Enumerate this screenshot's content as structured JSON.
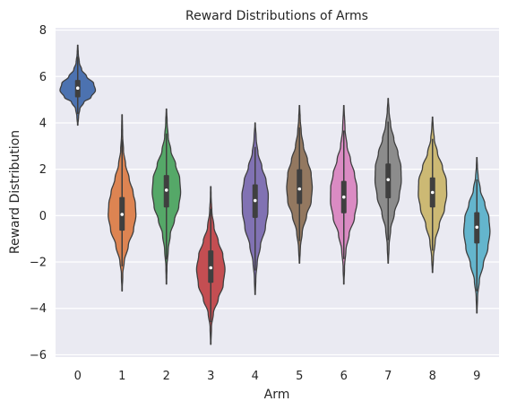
{
  "chart_data": {
    "type": "violin",
    "title": "Reward Distributions of Arms",
    "xlabel": "Arm",
    "ylabel": "Reward Distribution",
    "ylim": [
      -6.1,
      8.1
    ],
    "yticks": [
      -6,
      -4,
      -2,
      0,
      2,
      4,
      6,
      8
    ],
    "categories": [
      "0",
      "1",
      "2",
      "3",
      "4",
      "5",
      "6",
      "7",
      "8",
      "9"
    ],
    "grid": true,
    "background": "#eaeaf2",
    "grid_color": "#ffffff",
    "violins": [
      {
        "category": "0",
        "color": "#4c72b0",
        "min": 3.9,
        "max": 7.35,
        "q1": 5.1,
        "median": 5.5,
        "q3": 5.85,
        "profile": [
          [
            3.9,
            0.01
          ],
          [
            4.3,
            0.05
          ],
          [
            4.6,
            0.12
          ],
          [
            4.9,
            0.35
          ],
          [
            5.1,
            0.75
          ],
          [
            5.4,
            1.0
          ],
          [
            5.7,
            0.9
          ],
          [
            6.0,
            0.5
          ],
          [
            6.3,
            0.22
          ],
          [
            6.6,
            0.09
          ],
          [
            7.0,
            0.03
          ],
          [
            7.35,
            0.01
          ]
        ]
      },
      {
        "category": "1",
        "color": "#dd8452",
        "min": -3.25,
        "max": 4.35,
        "q1": -0.65,
        "median": 0.05,
        "q3": 0.8,
        "profile": [
          [
            -3.25,
            0.01
          ],
          [
            -2.5,
            0.04
          ],
          [
            -2.0,
            0.12
          ],
          [
            -1.3,
            0.35
          ],
          [
            -0.6,
            0.65
          ],
          [
            0.0,
            0.78
          ],
          [
            0.5,
            0.75
          ],
          [
            1.0,
            0.62
          ],
          [
            1.6,
            0.4
          ],
          [
            2.2,
            0.2
          ],
          [
            2.8,
            0.08
          ],
          [
            3.5,
            0.03
          ],
          [
            4.35,
            0.01
          ]
        ]
      },
      {
        "category": "2",
        "color": "#55a868",
        "min": -2.95,
        "max": 4.6,
        "q1": 0.35,
        "median": 1.1,
        "q3": 1.75,
        "profile": [
          [
            -2.95,
            0.01
          ],
          [
            -2.2,
            0.03
          ],
          [
            -1.5,
            0.1
          ],
          [
            -0.8,
            0.22
          ],
          [
            -0.2,
            0.45
          ],
          [
            0.4,
            0.7
          ],
          [
            1.0,
            0.8
          ],
          [
            1.6,
            0.75
          ],
          [
            2.2,
            0.52
          ],
          [
            2.8,
            0.25
          ],
          [
            3.4,
            0.1
          ],
          [
            4.0,
            0.04
          ],
          [
            4.6,
            0.01
          ]
        ]
      },
      {
        "category": "3",
        "color": "#c44e52",
        "min": -5.55,
        "max": 1.25,
        "q1": -2.9,
        "median": -2.25,
        "q3": -1.5,
        "profile": [
          [
            -5.55,
            0.01
          ],
          [
            -4.8,
            0.04
          ],
          [
            -4.2,
            0.15
          ],
          [
            -3.6,
            0.42
          ],
          [
            -3.0,
            0.7
          ],
          [
            -2.3,
            0.8
          ],
          [
            -1.7,
            0.68
          ],
          [
            -1.1,
            0.42
          ],
          [
            -0.5,
            0.18
          ],
          [
            0.2,
            0.06
          ],
          [
            0.8,
            0.02
          ],
          [
            1.25,
            0.01
          ]
        ]
      },
      {
        "category": "4",
        "color": "#8172b3",
        "min": -3.4,
        "max": 4.0,
        "q1": -0.1,
        "median": 0.65,
        "q3": 1.35,
        "profile": [
          [
            -3.4,
            0.01
          ],
          [
            -2.7,
            0.04
          ],
          [
            -2.0,
            0.12
          ],
          [
            -1.3,
            0.3
          ],
          [
            -0.5,
            0.58
          ],
          [
            0.2,
            0.72
          ],
          [
            0.9,
            0.74
          ],
          [
            1.5,
            0.62
          ],
          [
            2.1,
            0.38
          ],
          [
            2.7,
            0.16
          ],
          [
            3.3,
            0.06
          ],
          [
            4.0,
            0.01
          ]
        ]
      },
      {
        "category": "5",
        "color": "#937860",
        "min": -2.05,
        "max": 4.75,
        "q1": 0.5,
        "median": 1.15,
        "q3": 2.0,
        "profile": [
          [
            -2.05,
            0.01
          ],
          [
            -1.4,
            0.05
          ],
          [
            -0.7,
            0.16
          ],
          [
            0.0,
            0.4
          ],
          [
            0.6,
            0.66
          ],
          [
            1.2,
            0.72
          ],
          [
            1.8,
            0.66
          ],
          [
            2.4,
            0.45
          ],
          [
            3.0,
            0.22
          ],
          [
            3.6,
            0.1
          ],
          [
            4.2,
            0.04
          ],
          [
            4.75,
            0.01
          ]
        ]
      },
      {
        "category": "6",
        "color": "#da8bc3",
        "min": -2.95,
        "max": 4.75,
        "q1": 0.1,
        "median": 0.8,
        "q3": 1.5,
        "profile": [
          [
            -2.95,
            0.01
          ],
          [
            -2.2,
            0.04
          ],
          [
            -1.5,
            0.12
          ],
          [
            -0.8,
            0.3
          ],
          [
            -0.1,
            0.6
          ],
          [
            0.6,
            0.75
          ],
          [
            1.2,
            0.74
          ],
          [
            1.8,
            0.6
          ],
          [
            2.4,
            0.38
          ],
          [
            3.0,
            0.18
          ],
          [
            3.7,
            0.07
          ],
          [
            4.75,
            0.01
          ]
        ]
      },
      {
        "category": "7",
        "color": "#8c8c8c",
        "min": -2.05,
        "max": 5.05,
        "q1": 0.75,
        "median": 1.55,
        "q3": 2.25,
        "profile": [
          [
            -2.05,
            0.01
          ],
          [
            -1.3,
            0.05
          ],
          [
            -0.6,
            0.14
          ],
          [
            0.1,
            0.35
          ],
          [
            0.8,
            0.62
          ],
          [
            1.5,
            0.74
          ],
          [
            2.1,
            0.72
          ],
          [
            2.7,
            0.55
          ],
          [
            3.3,
            0.32
          ],
          [
            3.9,
            0.14
          ],
          [
            4.5,
            0.05
          ],
          [
            5.05,
            0.01
          ]
        ]
      },
      {
        "category": "8",
        "color": "#ccb974",
        "min": -2.45,
        "max": 4.25,
        "q1": 0.35,
        "median": 1.0,
        "q3": 1.65,
        "profile": [
          [
            -2.45,
            0.01
          ],
          [
            -1.8,
            0.05
          ],
          [
            -1.1,
            0.15
          ],
          [
            -0.4,
            0.38
          ],
          [
            0.3,
            0.68
          ],
          [
            0.9,
            0.8
          ],
          [
            1.5,
            0.78
          ],
          [
            2.1,
            0.56
          ],
          [
            2.7,
            0.28
          ],
          [
            3.3,
            0.1
          ],
          [
            3.8,
            0.04
          ],
          [
            4.25,
            0.01
          ]
        ]
      },
      {
        "category": "9",
        "color": "#64b5cd",
        "min": -4.2,
        "max": 2.5,
        "q1": -1.2,
        "median": -0.5,
        "q3": 0.15,
        "profile": [
          [
            -4.2,
            0.01
          ],
          [
            -3.5,
            0.04
          ],
          [
            -2.8,
            0.14
          ],
          [
            -2.1,
            0.36
          ],
          [
            -1.4,
            0.62
          ],
          [
            -0.7,
            0.74
          ],
          [
            -0.1,
            0.68
          ],
          [
            0.5,
            0.45
          ],
          [
            1.1,
            0.2
          ],
          [
            1.7,
            0.07
          ],
          [
            2.1,
            0.03
          ],
          [
            2.5,
            0.01
          ]
        ]
      }
    ]
  }
}
